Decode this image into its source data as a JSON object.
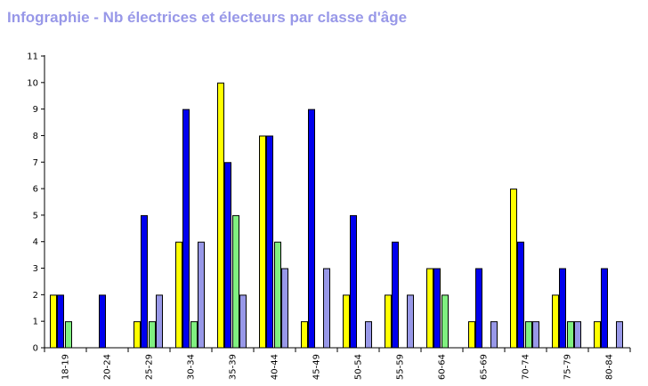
{
  "chart_data": {
    "type": "bar",
    "title": "Infographie - Nb électrices et électeurs par classe d'âge",
    "xlabel": "",
    "ylabel": "",
    "ylim": [
      0,
      11
    ],
    "yticks": [
      "0",
      "1",
      "2",
      "3",
      "4",
      "5",
      "6",
      "7",
      "8",
      "9",
      "10",
      "11"
    ],
    "grid": false,
    "legend": "none",
    "categories": [
      "18-19",
      "20-24",
      "25-29",
      "30-34",
      "35-39",
      "40-44",
      "45-49",
      "50-54",
      "55-59",
      "60-64",
      "65-69",
      "70-74",
      "75-79",
      "80-84"
    ],
    "series": [
      {
        "color": "#ffff00",
        "values": [
          2,
          0,
          1,
          4,
          10,
          8,
          1,
          2,
          2,
          3,
          1,
          6,
          2,
          1
        ]
      },
      {
        "color": "#0000ee",
        "values": [
          2,
          2,
          5,
          9,
          7,
          8,
          9,
          5,
          4,
          3,
          3,
          4,
          3,
          3
        ]
      },
      {
        "color": "#80f080",
        "values": [
          1,
          0,
          1,
          1,
          5,
          4,
          0,
          0,
          0,
          2,
          0,
          1,
          1,
          0
        ]
      },
      {
        "color": "#9898e8",
        "values": [
          0,
          0,
          2,
          4,
          2,
          3,
          3,
          1,
          2,
          0,
          1,
          1,
          1,
          1
        ]
      }
    ]
  }
}
